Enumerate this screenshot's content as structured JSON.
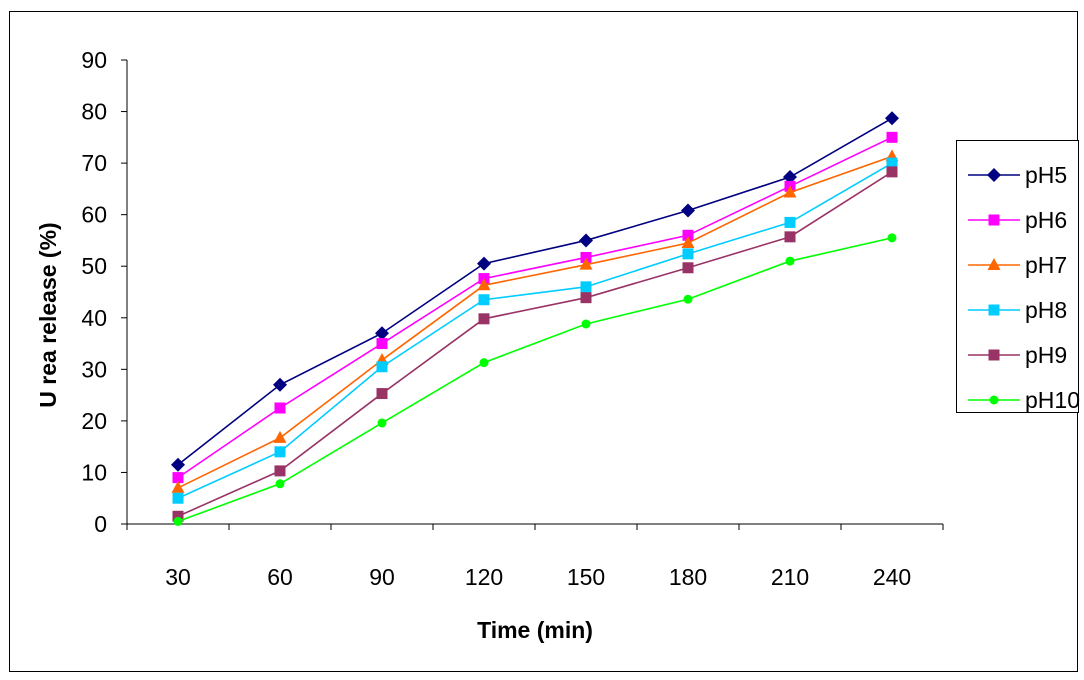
{
  "chart_data": {
    "type": "line",
    "title": "",
    "xlabel": "Time (min)",
    "ylabel": "U rea release (%)",
    "ylim": [
      0,
      90
    ],
    "ytick_step": 10,
    "categories": [
      "30",
      "60",
      "90",
      "120",
      "150",
      "180",
      "210",
      "240"
    ],
    "grid": false,
    "legend_position": "right",
    "series": [
      {
        "name": "pH5",
        "color": "#000080",
        "marker": "diamond",
        "values": [
          11.5,
          27,
          37,
          50.5,
          55,
          60.8,
          67.3,
          78.7
        ]
      },
      {
        "name": "pH6",
        "color": "#ff00ff",
        "marker": "square",
        "values": [
          9,
          22.5,
          35,
          47.6,
          51.7,
          56,
          65.5,
          75
        ]
      },
      {
        "name": "pH7",
        "color": "#ff6600",
        "marker": "triangle",
        "values": [
          7,
          16.7,
          31.8,
          46.3,
          50.3,
          54.5,
          64.3,
          71.3
        ]
      },
      {
        "name": "pH8",
        "color": "#00ccff",
        "marker": "square",
        "values": [
          5,
          14,
          30.5,
          43.5,
          46,
          52.4,
          58.5,
          70
        ]
      },
      {
        "name": "pH9",
        "color": "#993366",
        "marker": "square",
        "values": [
          1.5,
          10.3,
          25.3,
          39.8,
          43.9,
          49.7,
          55.7,
          68.3
        ]
      },
      {
        "name": "pH10",
        "color": "#00ff00",
        "marker": "circle",
        "values": [
          0.5,
          7.8,
          19.6,
          31.3,
          38.8,
          43.6,
          51,
          55.5
        ]
      }
    ]
  }
}
